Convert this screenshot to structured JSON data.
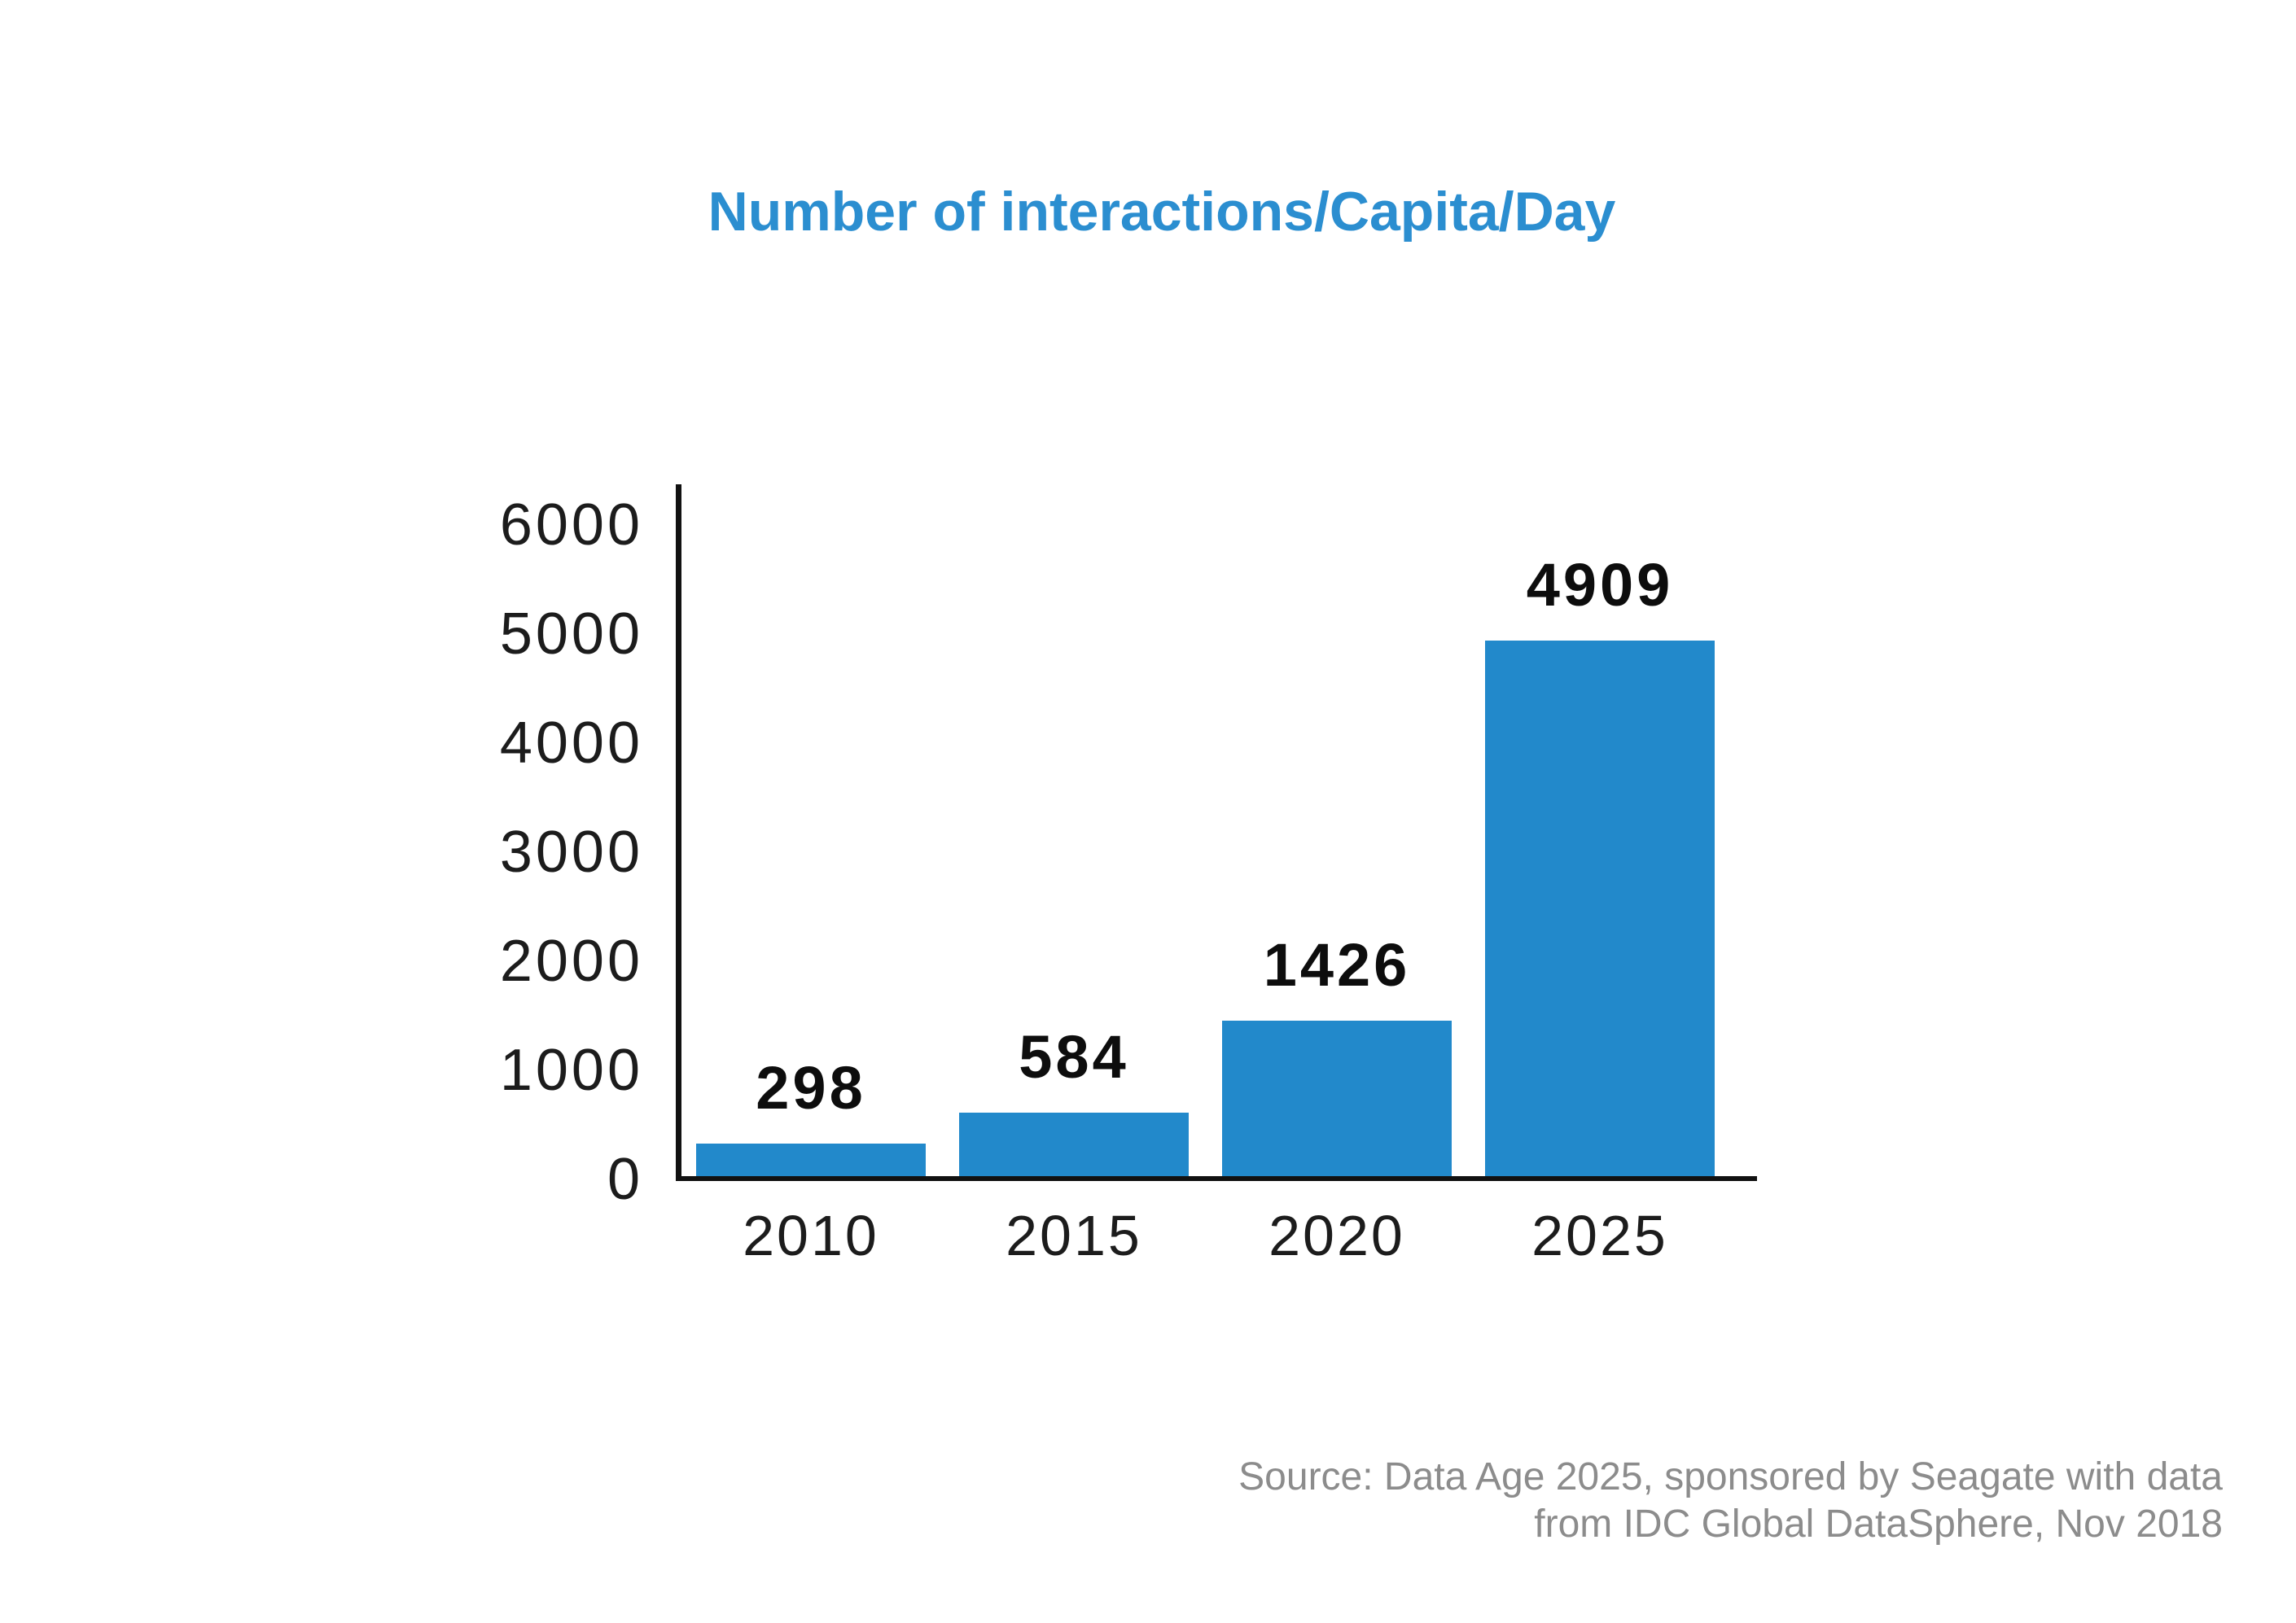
{
  "chart_data": {
    "type": "bar",
    "title": "Number of interactions/Capita/Day",
    "categories": [
      "2010",
      "2015",
      "2020",
      "2025"
    ],
    "values": [
      298,
      584,
      1426,
      4909
    ],
    "data_labels": [
      "298",
      "584",
      "1426",
      "4909"
    ],
    "xlabel": "",
    "ylabel": "",
    "ylim": [
      0,
      6000
    ],
    "yticks": [
      0,
      1000,
      2000,
      3000,
      4000,
      5000,
      6000
    ],
    "grid": false,
    "legend": "none",
    "bar_color": "#2289cb"
  },
  "colors": {
    "title_text": "#2b8ed0",
    "bar_fill": "#2289cb",
    "axis_line": "#111111",
    "tick_text": "#1c1c1c",
    "value_label_text": "#0d0d0d",
    "source_text": "#8c8c8c",
    "background": "#ffffff"
  },
  "source": {
    "line1": "Source: Data Age 2025, sponsored by Seagate with data",
    "line2": "from IDC Global DataSphere, Nov 2018"
  }
}
